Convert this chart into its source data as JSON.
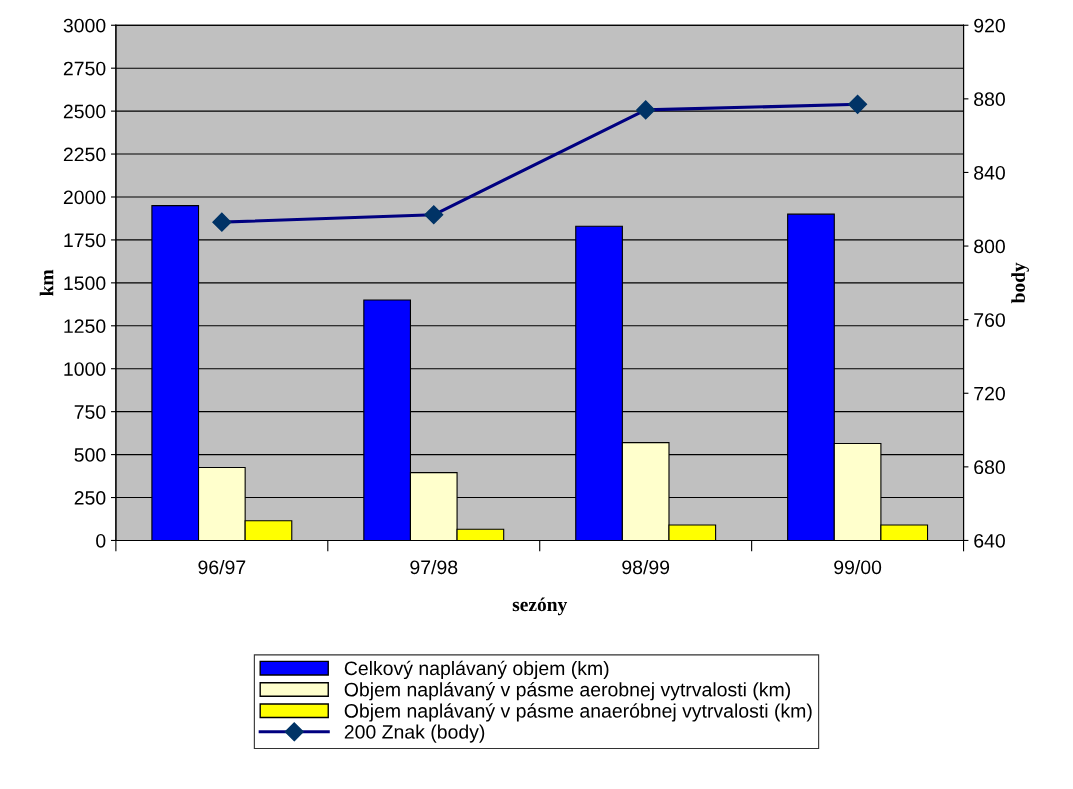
{
  "chart_data": {
    "type": "bar",
    "xlabel": "sezóny",
    "ylabel": "km",
    "y2label": "body",
    "categories": [
      "96/97",
      "97/98",
      "98/99",
      "99/00"
    ],
    "series": [
      {
        "name": "Celkový naplávaný objem (km)",
        "color": "#0000ff",
        "values": [
          1950,
          1400,
          1830,
          1900
        ]
      },
      {
        "name": "Objem naplávaný v pásme aerobnej vytrvalosti (km)",
        "color": "#ffffcc",
        "values": [
          425,
          395,
          570,
          565
        ]
      },
      {
        "name": "Objem naplávaný v pásme anaeróbnej vytrvalosti (km)",
        "color": "#ffff00",
        "values": [
          115,
          65,
          90,
          90
        ]
      },
      {
        "name": "200 Znak (body)",
        "type": "line",
        "axis": "y2",
        "color": "#000080",
        "marker": "diamond",
        "values": [
          813,
          817,
          874,
          877
        ]
      }
    ],
    "ylim": [
      0,
      3000
    ],
    "yticks": [
      0,
      250,
      500,
      750,
      1000,
      1250,
      1500,
      1750,
      2000,
      2250,
      2500,
      2750,
      3000
    ],
    "y2lim": [
      640,
      920
    ],
    "y2ticks": [
      640,
      680,
      720,
      760,
      800,
      840,
      880,
      920
    ],
    "grid": "y",
    "legend": "bottom"
  }
}
